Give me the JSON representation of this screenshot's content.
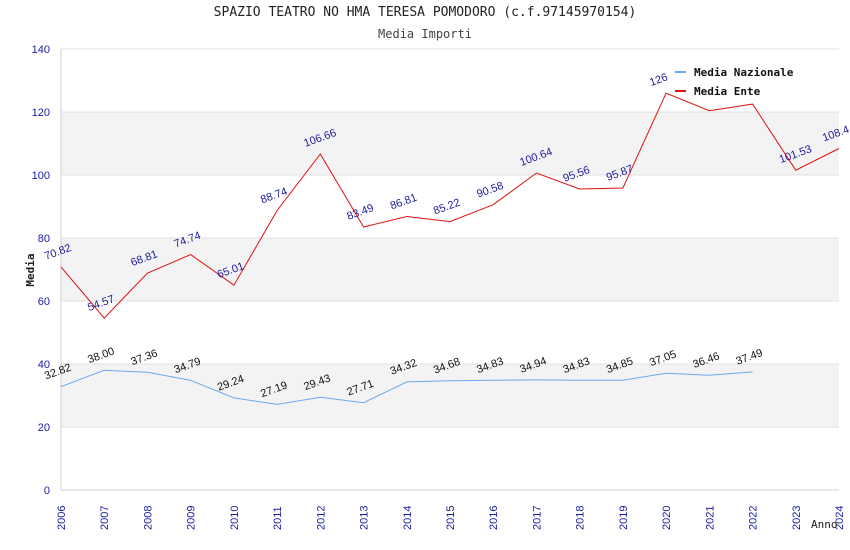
{
  "chart_data": {
    "type": "line",
    "title": "SPAZIO TEATRO NO HMA TERESA POMODORO (c.f.97145970154)",
    "subtitle": "Media Importi",
    "xlabel": "Anno",
    "ylabel": "Media",
    "ylim": [
      0,
      140
    ],
    "yticks": [
      "0",
      "20",
      "40",
      "60",
      "80",
      "100",
      "120",
      "140"
    ],
    "x": [
      "2006",
      "2007",
      "2008",
      "2009",
      "2010",
      "2011",
      "2012",
      "2013",
      "2014",
      "2015",
      "2016",
      "2017",
      "2018",
      "2019",
      "2020",
      "2021",
      "2022",
      "2023",
      "2024"
    ],
    "grid": "horizontal bands",
    "legend_position": "top-right",
    "series": [
      {
        "name": "Media Nazionale",
        "color": "#6aaaee",
        "label_color": "#111111",
        "values": [
          32.82,
          38.0,
          37.36,
          34.79,
          29.24,
          27.19,
          29.43,
          27.71,
          34.32,
          34.68,
          34.83,
          34.94,
          34.83,
          34.85,
          37.05,
          36.46,
          37.49,
          null,
          null
        ],
        "labels": [
          "32.82",
          "38.00",
          "37.36",
          "34.79",
          "29.24",
          "27.19",
          "29.43",
          "27.71",
          "34.32",
          "34.68",
          "34.83",
          "34.94",
          "34.83",
          "34.85",
          "37.05",
          "36.46",
          "37.49",
          "",
          ""
        ]
      },
      {
        "name": "Media Ente",
        "color": "#dd1111",
        "label_color": "#1a1a99",
        "values": [
          70.82,
          54.57,
          68.81,
          74.74,
          65.01,
          88.74,
          106.66,
          83.49,
          86.81,
          85.22,
          90.58,
          100.64,
          95.56,
          95.87,
          126.0,
          120.4,
          122.5,
          101.53,
          108.4
        ],
        "labels": [
          "70.82",
          "54.57",
          "68.81",
          "74.74",
          "65.01",
          "88.74",
          "106.66",
          "83.49",
          "86.81",
          "85.22",
          "90.58",
          "100.64",
          "95.56",
          "95.87",
          "126",
          "",
          "",
          "101.53",
          "108.4"
        ]
      }
    ]
  }
}
